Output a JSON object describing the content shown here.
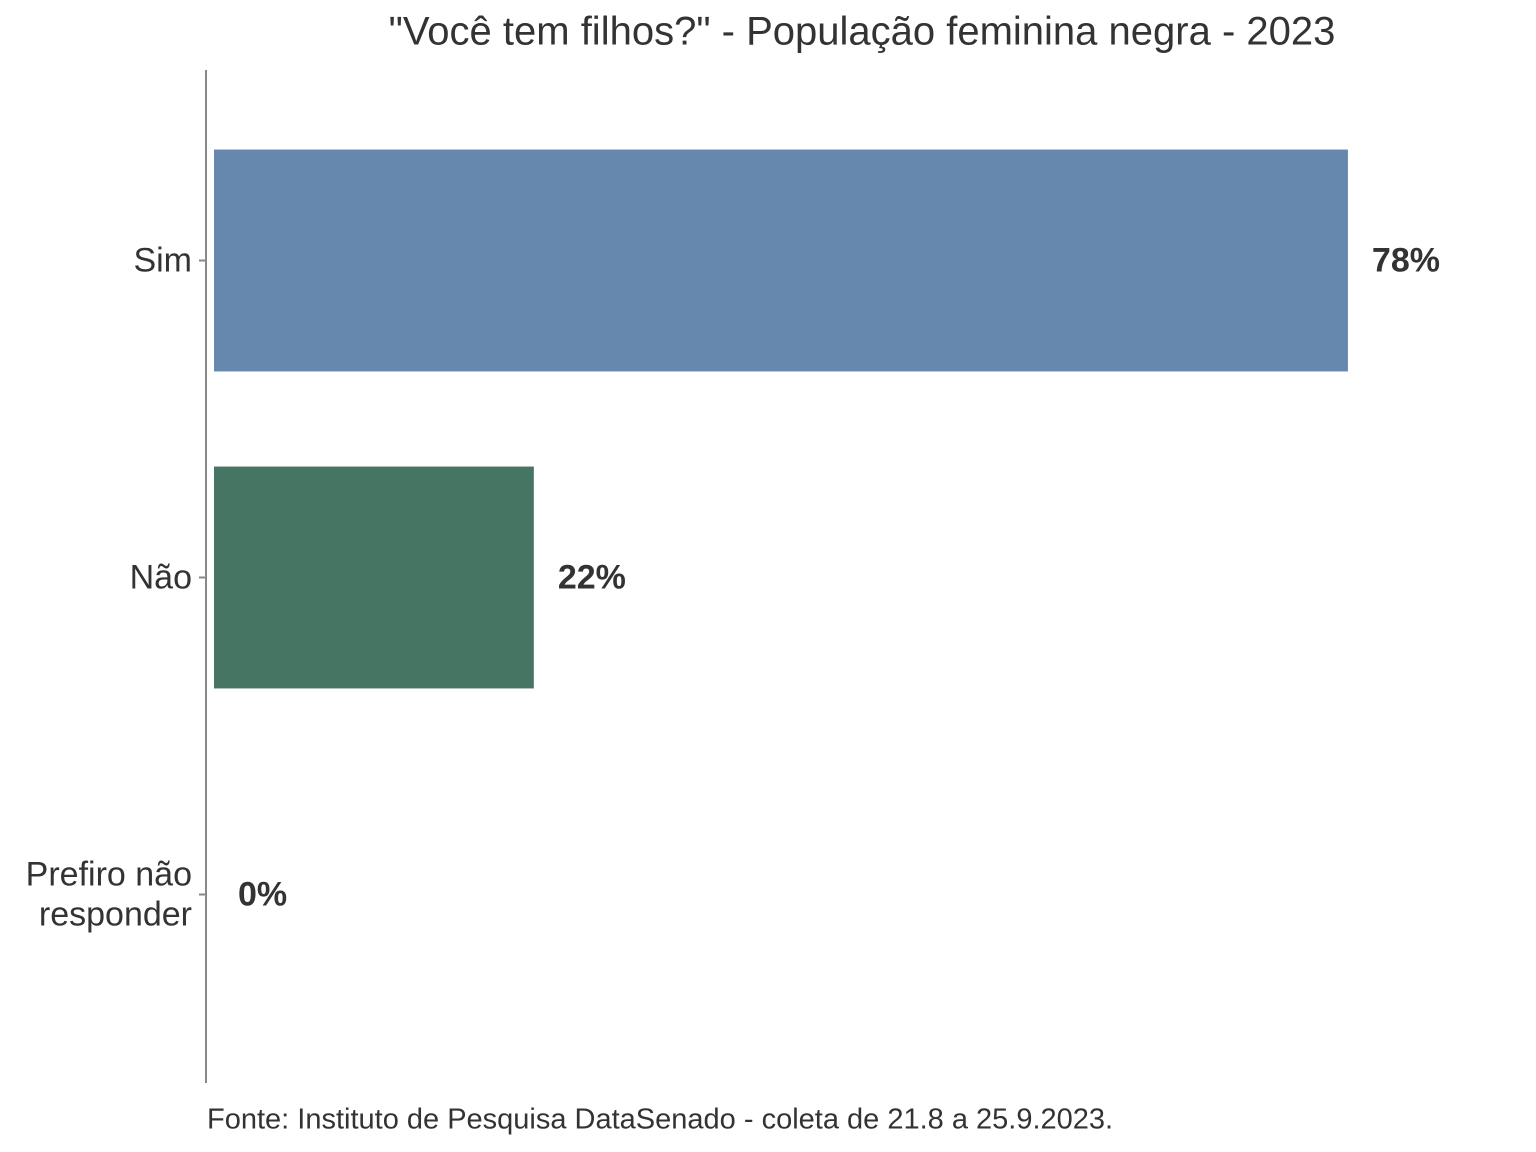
{
  "chart_data": {
    "type": "bar",
    "orientation": "horizontal",
    "title": "\"Você tem filhos?\" - População feminina negra - 2023",
    "caption": "Fonte: Instituto de Pesquisa DataSenado - coleta de 21.8 a 25.9.2023.",
    "categories": [
      "Sim",
      "Não",
      "Prefiro não\nresponder"
    ],
    "values": [
      78,
      22,
      0
    ],
    "value_labels": [
      "78%",
      "22%",
      "0%"
    ],
    "colors": [
      "#6688af",
      "#467563",
      "#8a8a8a"
    ],
    "xlim": [
      0,
      80
    ]
  }
}
